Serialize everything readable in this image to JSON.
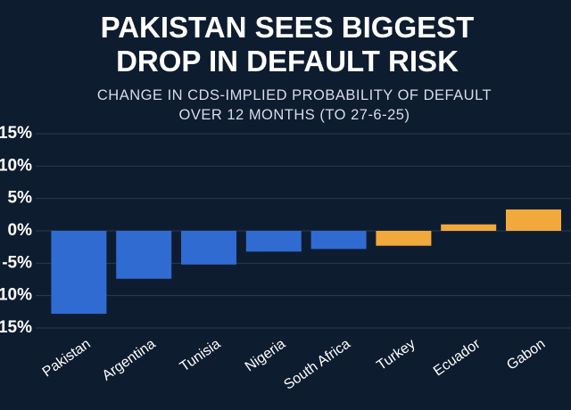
{
  "chart_data": {
    "type": "bar",
    "title": "PAKISTAN SEES BIGGEST",
    "title_line2": "DROP IN DEFAULT RISK",
    "subtitle": "CHANGE IN CDS-IMPLIED PROBABILITY OF DEFAULT",
    "subtitle_line2": "OVER 12 MONTHS (TO 27-6-25)",
    "categories": [
      "Pakistan",
      "Argentina",
      "Tunisia",
      "Nigeria",
      "South Africa",
      "Turkey",
      "Ecuador",
      "Gabon"
    ],
    "values": [
      -12.8,
      -7.4,
      -5.2,
      -3.2,
      -2.8,
      -2.3,
      1.0,
      3.3
    ],
    "colors": [
      "#2f6bd0",
      "#2f6bd0",
      "#2f6bd0",
      "#2f6bd0",
      "#2f6bd0",
      "#f2a93b",
      "#f2a93b",
      "#f2a93b"
    ],
    "ylim": [
      -15,
      15
    ],
    "yticks": [
      {
        "value": 15,
        "label": "15%"
      },
      {
        "value": 10,
        "label": "10%"
      },
      {
        "value": 5,
        "label": "5%"
      },
      {
        "value": 0,
        "label": "0%"
      },
      {
        "value": -5,
        "label": "-5%"
      },
      {
        "value": -10,
        "label": "-10%"
      },
      {
        "value": -15,
        "label": "-15%"
      }
    ],
    "grid": true
  }
}
